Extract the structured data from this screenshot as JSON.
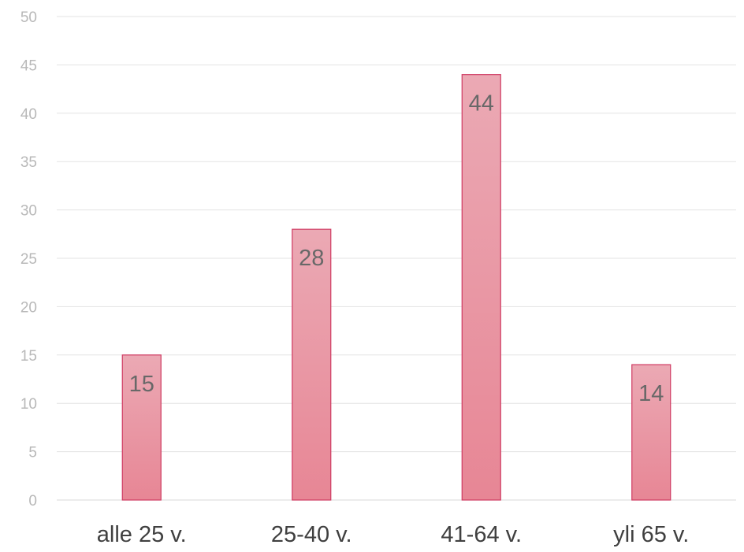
{
  "chart_data": {
    "type": "bar",
    "title": "",
    "xlabel": "",
    "ylabel": "",
    "categories": [
      "alle 25 v.",
      "25-40 v.",
      "41-64 v.",
      "yli 65 v."
    ],
    "values": [
      15,
      28,
      44,
      14
    ],
    "data_labels": [
      "15",
      "28",
      "44",
      "14"
    ],
    "ylim": [
      0,
      50
    ],
    "y_ticks": [
      0,
      5,
      10,
      15,
      20,
      25,
      30,
      35,
      40,
      45,
      50
    ],
    "y_tick_labels": [
      "0",
      "5",
      "10",
      "15",
      "20",
      "25",
      "30",
      "35",
      "40",
      "45",
      "50"
    ],
    "grid": true,
    "legend": "none",
    "colors": {
      "bar_top": "#eba9b4",
      "bar_bottom": "#e78695",
      "bar_border": "#cf3a62",
      "grid": "#e3e3e3",
      "tick_label": "#b8b8b8",
      "category_label": "#404040",
      "data_label": "#686868"
    }
  }
}
